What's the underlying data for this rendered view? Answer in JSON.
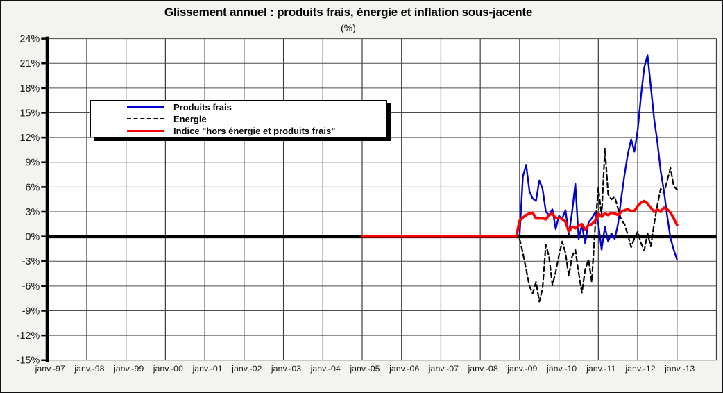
{
  "title": "Glissement annuel : produits frais, énergie et inflation sous-jacente",
  "subtitle": "(%)",
  "legend": {
    "items": [
      {
        "label": "Produits frais",
        "color": "#0000d0",
        "style": "solid",
        "width": 2.4
      },
      {
        "label": "Energie",
        "color": "#000000",
        "style": "dashed",
        "width": 2.2
      },
      {
        "label": "Indice \"hors énergie et produits frais\"",
        "color": "#ff0000",
        "style": "solid",
        "width": 3.8
      }
    ]
  },
  "chart_data": {
    "type": "line",
    "title": "Glissement annuel : produits frais, énergie et inflation sous-jacente",
    "unit": "(%)",
    "xlabel": "",
    "ylabel": "",
    "ylim": [
      -15,
      24
    ],
    "y_step": 3,
    "grid": true,
    "zero_line": true,
    "legend_position": "upper-left-inside",
    "y_tick_labels": [
      "24%",
      "21%",
      "18%",
      "15%",
      "12%",
      "9%",
      "6%",
      "3%",
      "0%",
      "-3%",
      "-6%",
      "-9%",
      "-12%",
      "-15%"
    ],
    "x_tick_labels": [
      "janv.-97",
      "janv.-98",
      "janv.-99",
      "janv.-00",
      "janv.-01",
      "janv.-02",
      "janv.-03",
      "janv.-04",
      "janv.-05",
      "janv.-06",
      "janv.-07",
      "janv.-08",
      "janv.-09",
      "janv.-10",
      "janv.-11",
      "janv.-12",
      "janv.-13"
    ],
    "x_start_year": 1997,
    "x_end_year": 2014,
    "series": [
      {
        "name": "Produits frais",
        "color": "#0000d0",
        "style": "solid",
        "width": 2.4,
        "frequency": "monthly",
        "start_year": 2009,
        "start_month": 1,
        "values": [
          0.2,
          7.3,
          8.7,
          5.5,
          4.6,
          4.3,
          6.8,
          5.8,
          3.0,
          2.6,
          3.3,
          0.9,
          2.5,
          2.2,
          3.2,
          0.2,
          3.0,
          6.4,
          -0.3,
          1.4,
          -0.8,
          1.7,
          2.2,
          2.9,
          1.5,
          -1.6,
          1.2,
          -0.6,
          0.4,
          -0.3,
          1.5,
          4.7,
          7.5,
          10.0,
          11.8,
          10.3,
          12.9,
          17.0,
          20.5,
          22.0,
          18.2,
          14.3,
          11.5,
          8.0,
          5.5,
          2.5,
          -0.2,
          -1.6,
          -2.8
        ]
      },
      {
        "name": "Energie",
        "color": "#000000",
        "style": "dashed",
        "width": 2.2,
        "frequency": "monthly",
        "start_year": 2009,
        "start_month": 1,
        "values": [
          -0.3,
          -2.0,
          -4.0,
          -6.0,
          -6.9,
          -5.5,
          -7.9,
          -6.3,
          -1.0,
          -2.5,
          -5.9,
          -4.3,
          -2.3,
          -0.6,
          -2.0,
          -4.8,
          -2.4,
          -1.6,
          -4.4,
          -6.8,
          -4.0,
          -2.8,
          -5.5,
          1.0,
          5.9,
          2.5,
          10.7,
          5.1,
          4.5,
          4.8,
          3.4,
          2.0,
          1.5,
          0.2,
          -1.3,
          -0.2,
          0.6,
          -0.8,
          -1.7,
          0.4,
          -1.2,
          1.5,
          3.8,
          5.8,
          5.2,
          6.8,
          8.3,
          6.1,
          5.7
        ]
      },
      {
        "name": "Indice \"hors énergie et produits frais\"",
        "color": "#ff0000",
        "style": "solid",
        "width": 3.8,
        "frequency": "monthly",
        "start_year": 2005,
        "start_month": 1,
        "values": [
          0,
          0,
          0,
          0,
          0,
          0,
          0,
          0,
          0,
          0,
          0,
          0,
          0,
          0,
          0,
          0,
          0,
          0,
          0,
          0,
          0,
          0,
          0,
          0,
          0,
          0,
          0,
          0,
          0,
          0,
          0,
          0,
          0,
          0,
          0,
          0,
          0,
          0,
          0,
          0,
          0,
          0,
          0,
          0,
          0,
          0,
          0,
          0,
          1.9,
          2.3,
          2.6,
          2.8,
          2.9,
          2.2,
          2.2,
          2.2,
          2.1,
          2.6,
          2.8,
          2.2,
          2.3,
          2.1,
          1.8,
          0.6,
          1.2,
          1.0,
          1.3,
          1.5,
          0.8,
          1.4,
          1.5,
          1.9,
          2.8,
          2.4,
          2.8,
          2.6,
          2.9,
          2.8,
          2.6,
          3.0,
          3.2,
          3.3,
          3.1,
          3.1,
          3.7,
          4.1,
          4.3,
          4.0,
          3.5,
          3.0,
          3.3,
          3.0,
          3.5,
          3.3,
          2.9,
          2.2,
          1.4
        ]
      }
    ]
  }
}
